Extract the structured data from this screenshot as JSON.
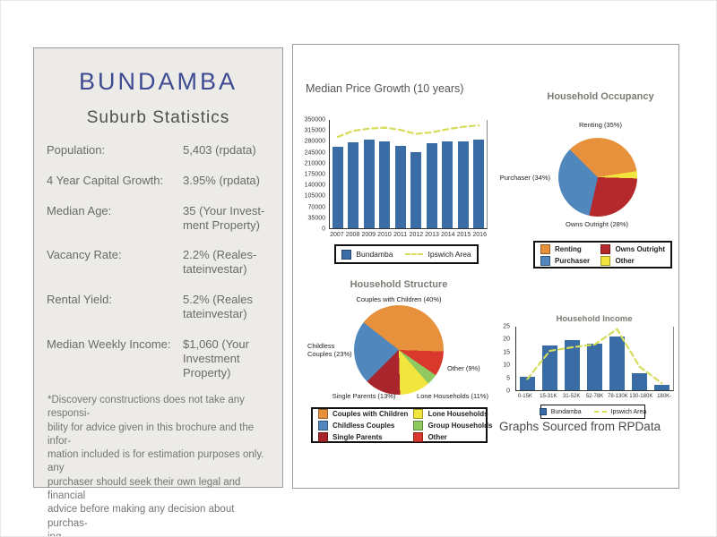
{
  "left_panel": {
    "title": "BUNDAMBA",
    "subtitle": "Suburb Statistics",
    "stats": [
      {
        "label": "Population:",
        "value": "5,403 (rpdata)"
      },
      {
        "label": "4 Year Capital Growth:",
        "value": "3.95% (rpdata)"
      },
      {
        "label": "Median Age:",
        "value": "35 (Your Invest-\nment Property)"
      },
      {
        "label": "Vacancy Rate:",
        "value": "2.2% (Reales-\ntateinvestar)"
      },
      {
        "label": "Rental Yield:",
        "value": "5.2% (Reales\ntateinvestar)"
      },
      {
        "label": "Median Weekly Income:",
        "value": "$1,060 (Your\nInvestment\nProperty)"
      }
    ],
    "disclaimer": "*Discovery constructions does not take any responsi-\nbility for advice given in this brochure and the infor-\nmation included is for estimation purposes only. any\npurchaser should seek their own legal and financial\nadvice before making any decision about purchas-\ning."
  },
  "right_panel": {
    "source_note": "Graphs Sourced from RPData"
  },
  "colors": {
    "bundamba_bar_blue": "#3A6CA6",
    "ipswich_line_green": "#D6DD5A",
    "pie_orange": "#E8913C",
    "pie_blue": "#5088BE",
    "pie_red": "#B5282C",
    "pie_yellow": "#F2E53E",
    "pie_green": "#8FC960",
    "pie_dark_red": "#A8252B",
    "pie_bright_red": "#D9392C",
    "title_navy": "#3E4A92"
  },
  "chart_data": [
    {
      "id": "median_price_growth",
      "type": "bar",
      "title": "Median Price Growth (10 years)",
      "categories": [
        "2007",
        "2008",
        "2009",
        "2010",
        "2011",
        "2012",
        "2013",
        "2014",
        "2015",
        "2016"
      ],
      "series": [
        {
          "name": "Bundamba",
          "type": "bar",
          "color": "#3A6CA6",
          "values": [
            263000,
            277000,
            286000,
            280000,
            266000,
            245000,
            275000,
            280000,
            282000,
            286000
          ]
        },
        {
          "name": "Ipswich Area",
          "type": "dashed-line",
          "color": "#D6DD5A",
          "values": [
            295000,
            315000,
            322000,
            325000,
            318000,
            305000,
            310000,
            320000,
            328000,
            332000
          ]
        }
      ],
      "ylim": [
        0,
        350000
      ],
      "ytick_step": 35000,
      "legend_position": "bottom",
      "legend": [
        {
          "label": "Bundamba",
          "color": "#3A6CA6",
          "marker": "box"
        },
        {
          "label": "Ipswich Area",
          "color": "#D6DD5A",
          "marker": "dash"
        }
      ]
    },
    {
      "id": "household_occupancy",
      "type": "pie",
      "title": "Household Occupancy",
      "start_angle": 315,
      "slices": [
        {
          "label": "Renting",
          "percent": 35,
          "color": "#E8913C"
        },
        {
          "label": "Other",
          "percent": 3,
          "color": "#F2E53E"
        },
        {
          "label": "Owns Outright",
          "percent": 28,
          "color": "#B5282C"
        },
        {
          "label": "Purchaser",
          "percent": 34,
          "color": "#5088BE"
        }
      ],
      "callouts": {
        "renting": "Renting (35%)",
        "purchaser": "Purchaser (34%)",
        "owns_outright": "Owns Outright (28%)"
      },
      "legend": [
        {
          "label": "Renting",
          "color": "#E8913C",
          "marker": "box"
        },
        {
          "label": "Owns Outright",
          "color": "#B5282C",
          "marker": "box"
        },
        {
          "label": "Purchaser",
          "color": "#5088BE",
          "marker": "box"
        },
        {
          "label": "Other",
          "color": "#F2E53E",
          "marker": "box"
        }
      ]
    },
    {
      "id": "household_structure",
      "type": "pie",
      "title": "Household Structure",
      "start_angle": 308,
      "slices": [
        {
          "label": "Couples with Children",
          "percent": 40,
          "color": "#E8913C"
        },
        {
          "label": "Other",
          "percent": 9,
          "color": "#D9392C"
        },
        {
          "label": "Group Households",
          "percent": 4,
          "color": "#8FC960"
        },
        {
          "label": "Lone Households",
          "percent": 11,
          "color": "#F2E53E"
        },
        {
          "label": "Single Parents",
          "percent": 13,
          "color": "#A8252B"
        },
        {
          "label": "Childless Couples",
          "percent": 23,
          "color": "#5088BE"
        }
      ],
      "callouts": {
        "couples": "Couples with Children (40%)",
        "childless": "Childless\nCouples (23%)",
        "single_parents": "Single Parents (13%)",
        "lone": "Lone Households (11%)",
        "other": "Other (9%)"
      },
      "legend": [
        {
          "label": "Couples with Children",
          "color": "#E8913C",
          "marker": "box"
        },
        {
          "label": "Lone Households",
          "color": "#F2E53E",
          "marker": "box"
        },
        {
          "label": "Childless Couples",
          "color": "#5088BE",
          "marker": "box"
        },
        {
          "label": "Group Households",
          "color": "#8FC960",
          "marker": "box"
        },
        {
          "label": "Single Parents",
          "color": "#A8252B",
          "marker": "box"
        },
        {
          "label": "Other",
          "color": "#D9392C",
          "marker": "box"
        }
      ]
    },
    {
      "id": "household_income",
      "type": "bar",
      "title": "Household Income",
      "categories": [
        "0-15K",
        "15-31K",
        "31-52K",
        "52-78K",
        "78-130K",
        "130-180K",
        "180K-"
      ],
      "series": [
        {
          "name": "Bundamba",
          "type": "bar",
          "color": "#3A6CA6",
          "values": [
            5.2,
            17.7,
            19.8,
            18.4,
            21,
            6.6,
            2
          ]
        },
        {
          "name": "Ipswich Area",
          "type": "dashed-line",
          "color": "#D6DD5A",
          "values": [
            4.4,
            15.5,
            16.9,
            18,
            24,
            9.3,
            2.7
          ]
        }
      ],
      "ylim": [
        0,
        25
      ],
      "ytick_step": 5,
      "legend_position": "bottom",
      "legend": [
        {
          "label": "Bundamba",
          "color": "#3A6CA6",
          "marker": "box"
        },
        {
          "label": "Ipswich Area",
          "color": "#D6DD5A",
          "marker": "dash"
        }
      ]
    }
  ]
}
